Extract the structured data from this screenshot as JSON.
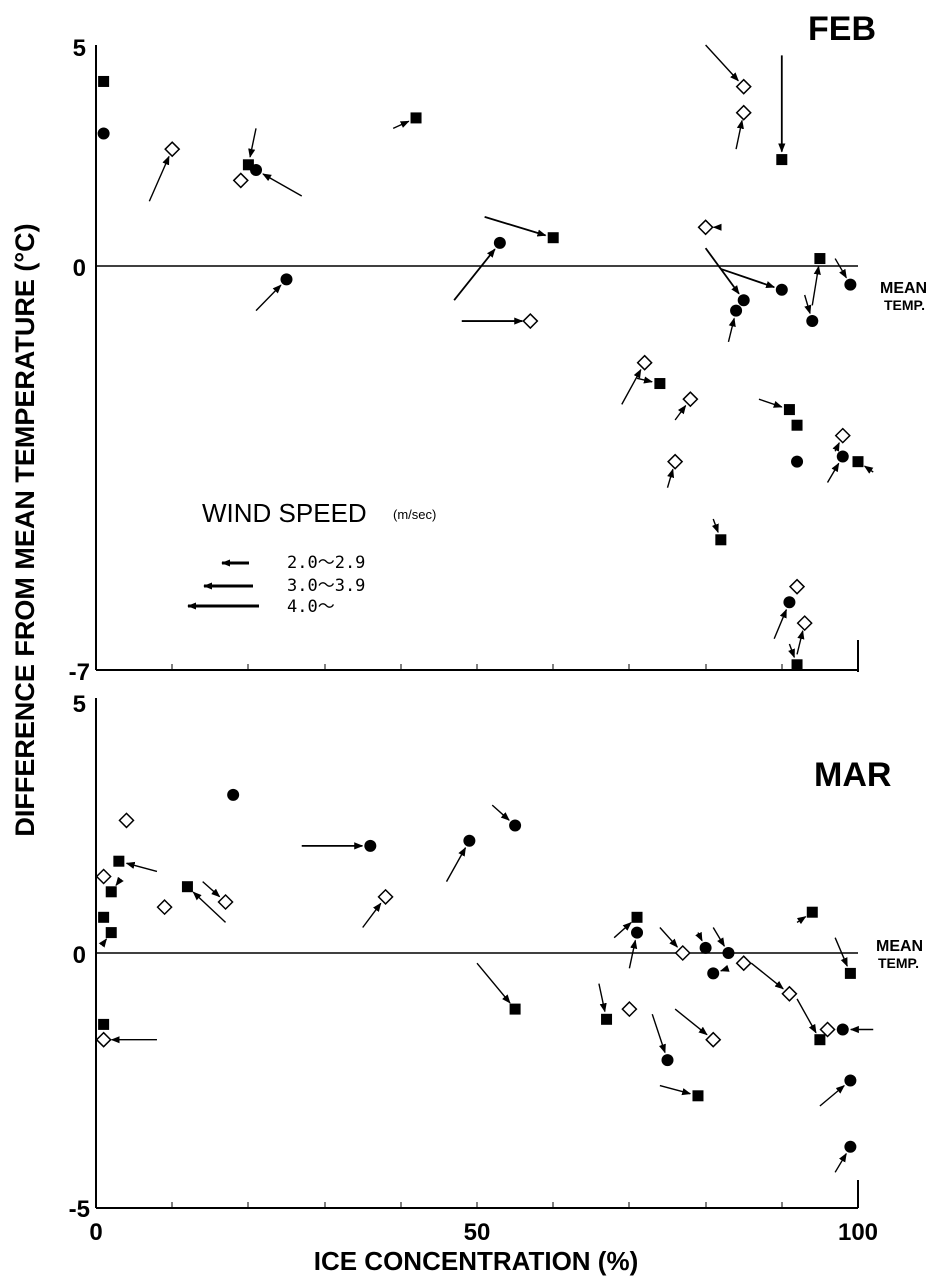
{
  "chart_data": {
    "type": "scatter",
    "ylabel": "DIFFERENCE FROM MEAN TEMPERATURE (°C)",
    "xlabel": "ICE CONCENTRATION (%)",
    "x_tick_labels": [
      "0",
      "50",
      "100"
    ],
    "mean_temp_label": [
      "MEAN",
      "TEMP."
    ],
    "legend": {
      "title": "WIND SPEED",
      "units": "(m/sec)",
      "entries": [
        {
          "range": "2.0〜2.9",
          "arrow": "short"
        },
        {
          "range": "3.0〜3.9",
          "arrow": "medium"
        },
        {
          "range": "4.0〜",
          "arrow": "long"
        }
      ]
    },
    "panels": [
      {
        "title": "FEB",
        "xlim": [
          0,
          100
        ],
        "ylim": [
          -7,
          5
        ],
        "y_tick_labels": [
          "5",
          "0",
          "-7"
        ],
        "points": [
          {
            "x": 1,
            "y": 4.3,
            "m": "square"
          },
          {
            "x": 1,
            "y": 3.3,
            "m": "circle"
          },
          {
            "x": 10,
            "y": 3.0,
            "m": "diamond",
            "arrow": [
              7,
              2.0
            ]
          },
          {
            "x": 19,
            "y": 2.4,
            "m": "diamond"
          },
          {
            "x": 20,
            "y": 2.7,
            "m": "square",
            "arrow": [
              21,
              3.4
            ]
          },
          {
            "x": 21,
            "y": 2.6,
            "m": "circle",
            "arrow": [
              27,
              2.1
            ]
          },
          {
            "x": 25,
            "y": 0.5,
            "m": "circle",
            "arrow": [
              21,
              -0.1
            ]
          },
          {
            "x": 42,
            "y": 3.6,
            "m": "square",
            "arrow": [
              39,
              3.4
            ]
          },
          {
            "x": 53,
            "y": 1.2,
            "m": "circle",
            "arrow": [
              47,
              0.1
            ]
          },
          {
            "x": 60,
            "y": 1.3,
            "m": "square",
            "arrow": [
              51,
              1.7
            ]
          },
          {
            "x": 57,
            "y": -0.3,
            "m": "diamond",
            "arrow": [
              48,
              -0.3
            ]
          },
          {
            "x": 85,
            "y": 4.2,
            "m": "diamond",
            "arrow": [
              80,
              5.0
            ]
          },
          {
            "x": 85,
            "y": 3.7,
            "m": "diamond",
            "arrow": [
              84,
              3.0
            ]
          },
          {
            "x": 90,
            "y": 2.8,
            "m": "square",
            "arrow": [
              90,
              4.8
            ]
          },
          {
            "x": 80,
            "y": 1.5,
            "m": "diamond",
            "arrow": [
              82,
              1.5
            ]
          },
          {
            "x": 85,
            "y": 0.1,
            "m": "circle",
            "arrow": [
              80,
              1.1
            ]
          },
          {
            "x": 84,
            "y": -0.1,
            "m": "circle",
            "arrow": [
              83,
              -0.7
            ]
          },
          {
            "x": 90,
            "y": 0.3,
            "m": "circle",
            "arrow": [
              82,
              0.7
            ]
          },
          {
            "x": 95,
            "y": 0.9,
            "m": "square",
            "arrow": [
              94,
              0.0
            ]
          },
          {
            "x": 99,
            "y": 0.4,
            "m": "circle",
            "arrow": [
              97,
              0.9
            ]
          },
          {
            "x": 94,
            "y": -0.3,
            "m": "circle",
            "arrow": [
              93,
              0.2
            ]
          },
          {
            "x": 72,
            "y": -1.1,
            "m": "diamond",
            "arrow": [
              69,
              -1.9
            ]
          },
          {
            "x": 74,
            "y": -1.5,
            "m": "square",
            "arrow": [
              71,
              -1.4
            ]
          },
          {
            "x": 78,
            "y": -1.8,
            "m": "diamond",
            "arrow": [
              76,
              -2.2
            ]
          },
          {
            "x": 76,
            "y": -3.0,
            "m": "diamond",
            "arrow": [
              75,
              -3.5
            ]
          },
          {
            "x": 91,
            "y": -2.0,
            "m": "square",
            "arrow": [
              87,
              -1.8
            ]
          },
          {
            "x": 92,
            "y": -2.3,
            "m": "square"
          },
          {
            "x": 92,
            "y": -3.0,
            "m": "circle"
          },
          {
            "x": 98,
            "y": -2.5,
            "m": "diamond",
            "arrow": [
              97,
              -2.8
            ]
          },
          {
            "x": 98,
            "y": -2.9,
            "m": "circle",
            "arrow": [
              96,
              -3.4
            ]
          },
          {
            "x": 100,
            "y": -3.0,
            "m": "square",
            "arrow": [
              102,
              -3.2
            ]
          },
          {
            "x": 82,
            "y": -4.5,
            "m": "square",
            "arrow": [
              81,
              -4.1
            ]
          },
          {
            "x": 92,
            "y": -5.4,
            "m": "diamond"
          },
          {
            "x": 91,
            "y": -5.7,
            "m": "circle",
            "arrow": [
              89,
              -6.4
            ]
          },
          {
            "x": 93,
            "y": -6.1,
            "m": "diamond",
            "arrow": [
              92,
              -6.7
            ]
          },
          {
            "x": 92,
            "y": -6.9,
            "m": "square",
            "arrow": [
              91,
              -6.5
            ]
          }
        ]
      },
      {
        "title": "MAR",
        "xlim": [
          0,
          100
        ],
        "ylim": [
          -5,
          5
        ],
        "y_tick_labels": [
          "5",
          "0",
          "-5"
        ],
        "points": [
          {
            "x": 18,
            "y": 3.1,
            "m": "circle"
          },
          {
            "x": 4,
            "y": 2.6,
            "m": "diamond"
          },
          {
            "x": 3,
            "y": 1.8,
            "m": "square",
            "arrow": [
              8,
              1.6
            ]
          },
          {
            "x": 1,
            "y": 1.5,
            "m": "diamond"
          },
          {
            "x": 2,
            "y": 1.2,
            "m": "square",
            "arrow": [
              3,
              1.4
            ]
          },
          {
            "x": 12,
            "y": 1.3,
            "m": "square",
            "arrow": [
              17,
              0.6
            ]
          },
          {
            "x": 17,
            "y": 1.0,
            "m": "diamond",
            "arrow": [
              14,
              1.4
            ]
          },
          {
            "x": 9,
            "y": 0.9,
            "m": "diamond"
          },
          {
            "x": 1,
            "y": 0.7,
            "m": "square"
          },
          {
            "x": 2,
            "y": 0.4,
            "m": "square",
            "arrow": [
              1,
              0.2
            ]
          },
          {
            "x": 36,
            "y": 2.1,
            "m": "circle",
            "arrow": [
              27,
              2.1
            ]
          },
          {
            "x": 49,
            "y": 2.2,
            "m": "circle",
            "arrow": [
              46,
              1.4
            ]
          },
          {
            "x": 55,
            "y": 2.5,
            "m": "circle",
            "arrow": [
              52,
              2.9
            ]
          },
          {
            "x": 38,
            "y": 1.1,
            "m": "diamond",
            "arrow": [
              35,
              0.5
            ]
          },
          {
            "x": 1,
            "y": -1.4,
            "m": "square"
          },
          {
            "x": 1,
            "y": -1.7,
            "m": "diamond",
            "arrow": [
              8,
              -1.7
            ]
          },
          {
            "x": 55,
            "y": -1.1,
            "m": "square",
            "arrow": [
              50,
              -0.2
            ]
          },
          {
            "x": 71,
            "y": 0.7,
            "m": "square",
            "arrow": [
              68,
              0.3
            ]
          },
          {
            "x": 71,
            "y": 0.4,
            "m": "circle",
            "arrow": [
              70,
              -0.3
            ]
          },
          {
            "x": 77,
            "y": 0.0,
            "m": "diamond",
            "arrow": [
              74,
              0.5
            ]
          },
          {
            "x": 80,
            "y": 0.1,
            "m": "circle",
            "arrow": [
              79,
              0.4
            ]
          },
          {
            "x": 83,
            "y": 0.0,
            "m": "circle",
            "arrow": [
              81,
              0.5
            ]
          },
          {
            "x": 81,
            "y": -0.4,
            "m": "circle",
            "arrow": [
              83,
              -0.3
            ]
          },
          {
            "x": 85,
            "y": -0.2,
            "m": "diamond"
          },
          {
            "x": 91,
            "y": -0.8,
            "m": "diamond",
            "arrow": [
              86,
              -0.2
            ]
          },
          {
            "x": 94,
            "y": 0.8,
            "m": "square",
            "arrow": [
              92,
              0.6
            ]
          },
          {
            "x": 99,
            "y": -0.4,
            "m": "square",
            "arrow": [
              97,
              0.3
            ]
          },
          {
            "x": 67,
            "y": -1.3,
            "m": "square",
            "arrow": [
              66,
              -0.6
            ]
          },
          {
            "x": 70,
            "y": -1.1,
            "m": "diamond"
          },
          {
            "x": 75,
            "y": -2.1,
            "m": "circle",
            "arrow": [
              73,
              -1.2
            ]
          },
          {
            "x": 79,
            "y": -2.8,
            "m": "square",
            "arrow": [
              74,
              -2.6
            ]
          },
          {
            "x": 81,
            "y": -1.7,
            "m": "diamond",
            "arrow": [
              76,
              -1.1
            ]
          },
          {
            "x": 96,
            "y": -1.5,
            "m": "diamond"
          },
          {
            "x": 95,
            "y": -1.7,
            "m": "square",
            "arrow": [
              92,
              -0.9
            ]
          },
          {
            "x": 98,
            "y": -1.5,
            "m": "circle",
            "arrow": [
              102,
              -1.5
            ]
          },
          {
            "x": 99,
            "y": -2.5,
            "m": "circle",
            "arrow": [
              95,
              -3.0
            ]
          },
          {
            "x": 99,
            "y": -3.8,
            "m": "circle",
            "arrow": [
              97,
              -4.3
            ]
          }
        ]
      }
    ]
  }
}
